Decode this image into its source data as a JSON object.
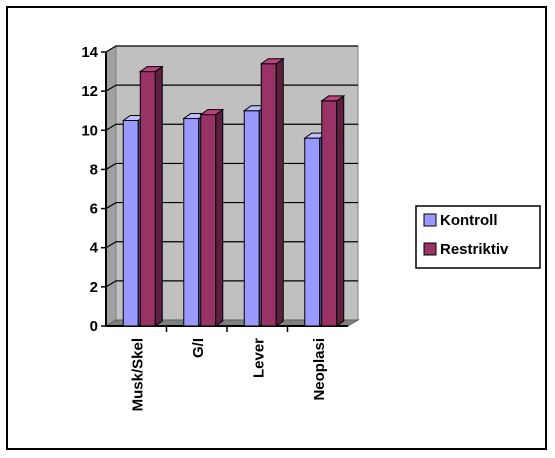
{
  "chart_data": {
    "type": "bar",
    "style": "3d-clustered-column",
    "title": "",
    "xlabel": "",
    "ylabel": "",
    "categories": [
      "Musk/Skel",
      "G/I",
      "Lever",
      "Neoplasi"
    ],
    "series": [
      {
        "name": "Kontroll",
        "values": [
          10.5,
          10.6,
          11.0,
          9.6
        ],
        "color": "#9999ff"
      },
      {
        "name": "Restriktiv",
        "values": [
          13.0,
          10.8,
          13.4,
          11.5
        ],
        "color": "#993366"
      }
    ],
    "ylim": [
      0,
      14
    ],
    "yticks": [
      "0",
      "2",
      "4",
      "6",
      "8",
      "10",
      "12",
      "14"
    ],
    "grid": true,
    "legend_position": "right",
    "wall_color": "#c0c0c0"
  }
}
